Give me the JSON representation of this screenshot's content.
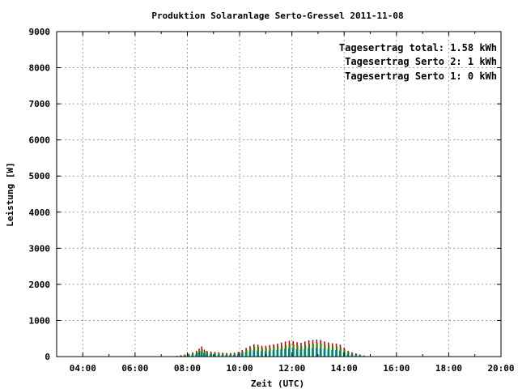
{
  "chart_data": {
    "type": "bar",
    "title": "Produktion Solaranlage Serto-Gressel 2011-11-08",
    "xlabel": "Zeit (UTC)",
    "ylabel": "Leistung [W]",
    "xlim": [
      3.0,
      20.0
    ],
    "ylim": [
      0,
      9000
    ],
    "xticks": [
      4,
      6,
      8,
      10,
      12,
      14,
      16,
      18,
      20
    ],
    "xtick_labels": [
      "04:00",
      "06:00",
      "08:00",
      "10:00",
      "12:00",
      "14:00",
      "16:00",
      "18:00",
      "20:00"
    ],
    "yticks": [
      0,
      1000,
      2000,
      3000,
      4000,
      5000,
      6000,
      7000,
      8000,
      9000
    ],
    "ytick_labels": [
      "0",
      "1000",
      "2000",
      "3000",
      "4000",
      "5000",
      "6000",
      "7000",
      "8000",
      "9000"
    ],
    "grid": true,
    "legend_position": "top-right",
    "legend": [
      {
        "label": "Tagesertrag total: 1.58 kWh",
        "color": "#cc0000"
      },
      {
        "label": "Tagesertrag Serto 2: 1 kWh",
        "color": "#00a000"
      },
      {
        "label": "Tagesertrag Serto 1: 0 kWh",
        "color": "#0070d0"
      }
    ],
    "x": [
      7.6,
      7.75,
      7.9,
      8.05,
      8.2,
      8.35,
      8.45,
      8.55,
      8.65,
      8.75,
      8.9,
      9.05,
      9.2,
      9.35,
      9.5,
      9.65,
      9.8,
      9.95,
      10.1,
      10.25,
      10.4,
      10.55,
      10.7,
      10.85,
      11.0,
      11.15,
      11.3,
      11.45,
      11.6,
      11.75,
      11.9,
      12.05,
      12.2,
      12.35,
      12.5,
      12.65,
      12.8,
      12.95,
      13.1,
      13.25,
      13.4,
      13.55,
      13.7,
      13.85,
      14.0,
      14.15,
      14.3,
      14.45,
      14.6,
      14.75,
      14.9
    ],
    "series": [
      {
        "name": "Tagesertrag total: 1.58 kWh",
        "color": "#cc0000",
        "values": [
          20,
          40,
          60,
          80,
          120,
          160,
          220,
          280,
          190,
          160,
          140,
          130,
          120,
          110,
          100,
          100,
          110,
          130,
          180,
          240,
          290,
          340,
          330,
          300,
          300,
          320,
          340,
          360,
          390,
          420,
          440,
          430,
          400,
          380,
          420,
          450,
          460,
          470,
          460,
          420,
          390,
          370,
          360,
          330,
          250,
          160,
          120,
          90,
          60,
          30,
          10
        ]
      },
      {
        "name": "Tagesertrag Serto 2: 1 kWh",
        "color": "#00a000",
        "values": [
          15,
          30,
          45,
          60,
          90,
          120,
          170,
          210,
          150,
          120,
          110,
          100,
          90,
          85,
          80,
          80,
          85,
          100,
          140,
          190,
          230,
          270,
          260,
          240,
          240,
          250,
          270,
          290,
          310,
          330,
          350,
          340,
          320,
          300,
          330,
          360,
          370,
          380,
          370,
          330,
          310,
          290,
          280,
          260,
          200,
          130,
          95,
          70,
          45,
          20,
          8
        ]
      },
      {
        "name": "Tagesertrag Serto 1: 0 kWh",
        "color": "#0070d0",
        "values": [
          8,
          15,
          25,
          35,
          55,
          75,
          105,
          130,
          95,
          75,
          70,
          65,
          60,
          55,
          50,
          50,
          55,
          65,
          90,
          120,
          150,
          170,
          165,
          150,
          150,
          160,
          170,
          185,
          200,
          215,
          225,
          220,
          205,
          195,
          215,
          230,
          240,
          245,
          235,
          215,
          200,
          185,
          180,
          165,
          125,
          80,
          60,
          45,
          28,
          12,
          5
        ]
      }
    ]
  }
}
